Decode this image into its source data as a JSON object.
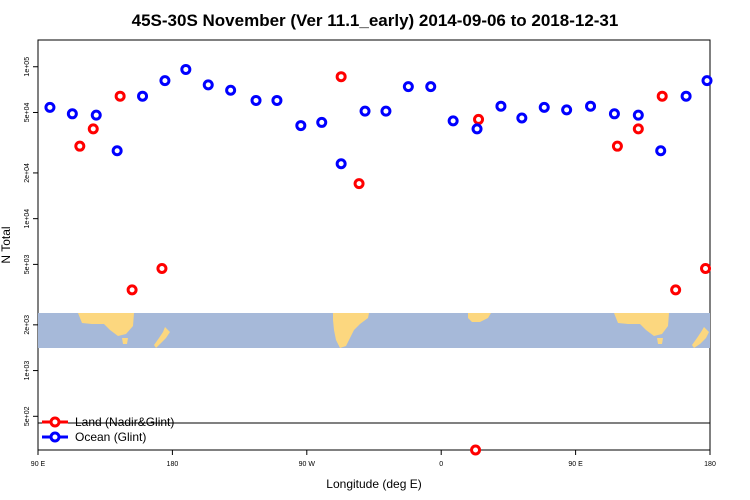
{
  "chart_data": {
    "type": "scatter",
    "title": "45S-30S November (Ver 11.1_early)   2014-09-06 to 2018-12-31",
    "xlabel": "Longitude (deg E)",
    "ylabel": "N Total",
    "x_scale": "longitude, 90E to 180 spanning 450 degrees (wraps through 180)",
    "y_scale": "log",
    "xlim": [
      90,
      540
    ],
    "ylim": [
      300,
      150000
    ],
    "x_ticks": [
      {
        "value": 90,
        "label": "90 E"
      },
      {
        "value": 180,
        "label": "180"
      },
      {
        "value": 270,
        "label": "90 W"
      },
      {
        "value": 360,
        "label": "0"
      },
      {
        "value": 450,
        "label": "90 E"
      },
      {
        "value": 540,
        "label": "180"
      }
    ],
    "y_ticks": [
      {
        "value": 500,
        "label": "5e+02"
      },
      {
        "value": 1000,
        "label": "1e+03"
      },
      {
        "value": 2000,
        "label": "2e+03"
      },
      {
        "value": 5000,
        "label": "5e+03"
      },
      {
        "value": 10000,
        "label": "1e+04"
      },
      {
        "value": 20000,
        "label": "2e+04"
      },
      {
        "value": 50000,
        "label": "5e+04"
      },
      {
        "value": 100000,
        "label": "1e+05"
      }
    ],
    "grid": false,
    "legend_position": "bottom-left",
    "series": [
      {
        "name": "Land (Nadir&Glint)",
        "color": "#ff0000",
        "points": [
          {
            "x": 118,
            "y": 30000
          },
          {
            "x": 127,
            "y": 39000
          },
          {
            "x": 145,
            "y": 64000
          },
          {
            "x": 153,
            "y": 3400
          },
          {
            "x": 173,
            "y": 4700
          },
          {
            "x": 293,
            "y": 86000
          },
          {
            "x": 305,
            "y": 17000
          },
          {
            "x": 383,
            "y": 300
          },
          {
            "x": 385,
            "y": 45000
          },
          {
            "x": 478,
            "y": 30000
          },
          {
            "x": 492,
            "y": 39000
          },
          {
            "x": 508,
            "y": 64000
          },
          {
            "x": 517,
            "y": 3400
          },
          {
            "x": 537,
            "y": 4700
          }
        ]
      },
      {
        "name": "Ocean (Glint)",
        "color": "#0000ff",
        "points": [
          {
            "x": 98,
            "y": 54000
          },
          {
            "x": 113,
            "y": 49000
          },
          {
            "x": 129,
            "y": 48000
          },
          {
            "x": 143,
            "y": 28000
          },
          {
            "x": 160,
            "y": 64000
          },
          {
            "x": 175,
            "y": 81000
          },
          {
            "x": 189,
            "y": 96000
          },
          {
            "x": 204,
            "y": 76000
          },
          {
            "x": 219,
            "y": 70000
          },
          {
            "x": 236,
            "y": 60000
          },
          {
            "x": 250,
            "y": 60000
          },
          {
            "x": 266,
            "y": 41000
          },
          {
            "x": 280,
            "y": 43000
          },
          {
            "x": 293,
            "y": 23000
          },
          {
            "x": 309,
            "y": 51000
          },
          {
            "x": 323,
            "y": 51000
          },
          {
            "x": 338,
            "y": 74000
          },
          {
            "x": 353,
            "y": 74000
          },
          {
            "x": 368,
            "y": 44000
          },
          {
            "x": 384,
            "y": 39000
          },
          {
            "x": 400,
            "y": 55000
          },
          {
            "x": 414,
            "y": 46000
          },
          {
            "x": 429,
            "y": 54000
          },
          {
            "x": 444,
            "y": 52000
          },
          {
            "x": 460,
            "y": 55000
          },
          {
            "x": 476,
            "y": 49000
          },
          {
            "x": 492,
            "y": 48000
          },
          {
            "x": 507,
            "y": 28000
          },
          {
            "x": 524,
            "y": 64000
          },
          {
            "x": 538,
            "y": 81000
          }
        ]
      }
    ]
  },
  "map_strip": {
    "ocean_color": "#a6b9d9",
    "land_color": "#fcd77f"
  }
}
